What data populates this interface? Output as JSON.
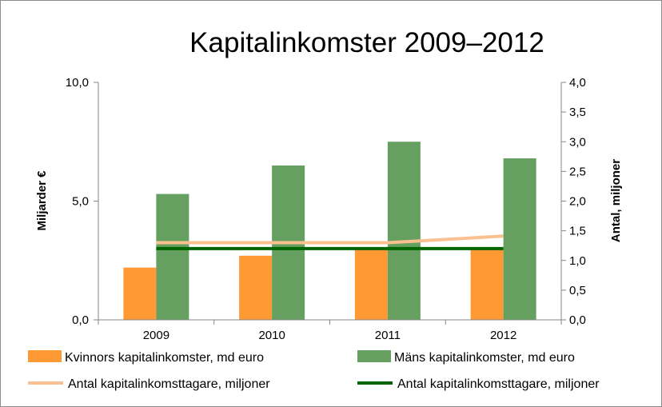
{
  "chart_data": {
    "type": "bar",
    "title": "Kapitalinkomster 2009–2012",
    "categories": [
      "2009",
      "2010",
      "2011",
      "2012"
    ],
    "ylabel": "Miljarder €",
    "y2label": "Antal, miljoner",
    "ylim": [
      0,
      10
    ],
    "y2lim": [
      0,
      4
    ],
    "yticks": [
      "0,0",
      "5,0",
      "10,0"
    ],
    "y2ticks": [
      "0,0",
      "0,5",
      "1,0",
      "1,5",
      "2,0",
      "2,5",
      "3,0",
      "3,5",
      "4,0"
    ],
    "grid": false,
    "legend_position": "bottom",
    "series": [
      {
        "name": "Kvinnors kapitalinkomster, md euro",
        "kind": "bar",
        "axis": "left",
        "color": "#ff9933",
        "values": [
          2.2,
          2.7,
          3.0,
          3.0
        ]
      },
      {
        "name": "Mäns kapitalinkomster, md euro",
        "kind": "bar",
        "axis": "left",
        "color": "#66a060",
        "values": [
          5.3,
          6.5,
          7.5,
          6.8
        ]
      },
      {
        "name": "Antal kapitalinkomsttagare, miljoner",
        "kind": "line",
        "axis": "right",
        "color": "#fac090",
        "values": [
          1.3,
          1.3,
          1.3,
          1.41
        ]
      },
      {
        "name": "Antal kapitalinkomsttagare, miljoner",
        "kind": "line",
        "axis": "right",
        "color": "#006400",
        "values": [
          1.2,
          1.2,
          1.2,
          1.2
        ]
      }
    ]
  }
}
